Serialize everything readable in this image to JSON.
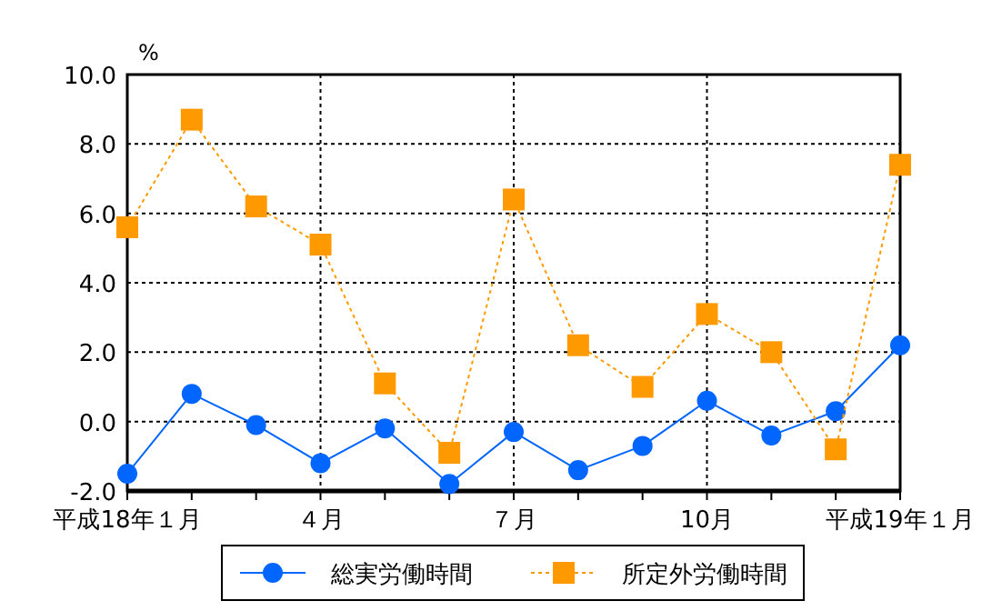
{
  "chart_data": {
    "type": "line",
    "ylabel": "%",
    "categories": [
      "平成18年１月",
      null,
      null,
      "４月",
      null,
      null,
      "７月",
      null,
      null,
      "10月",
      null,
      null,
      "平成19年１月"
    ],
    "series": [
      {
        "name": "総実労働時間",
        "color": "#0066ff",
        "marker": "circle",
        "line_style": "solid",
        "values": [
          -1.5,
          0.8,
          -0.1,
          -1.2,
          -0.2,
          -1.8,
          -0.3,
          -1.4,
          -0.7,
          0.6,
          -0.4,
          0.3,
          2.2
        ]
      },
      {
        "name": "所定外労働時間",
        "color": "#ff9900",
        "marker": "square",
        "line_style": "dotted",
        "values": [
          5.6,
          8.7,
          6.2,
          5.1,
          1.1,
          -0.9,
          6.4,
          2.2,
          1.0,
          3.1,
          2.0,
          -0.8,
          7.4
        ]
      }
    ],
    "ylim": [
      -2,
      10
    ],
    "yticks": [
      {
        "value": -2,
        "label": "-2.0"
      },
      {
        "value": 0,
        "label": "0.0"
      },
      {
        "value": 2,
        "label": "2.0"
      },
      {
        "value": 4,
        "label": "4.0"
      },
      {
        "value": 6,
        "label": "6.0"
      },
      {
        "value": 8,
        "label": "8.0"
      },
      {
        "value": 10,
        "label": "10.0"
      }
    ],
    "grid": true,
    "legend": "bottom"
  }
}
